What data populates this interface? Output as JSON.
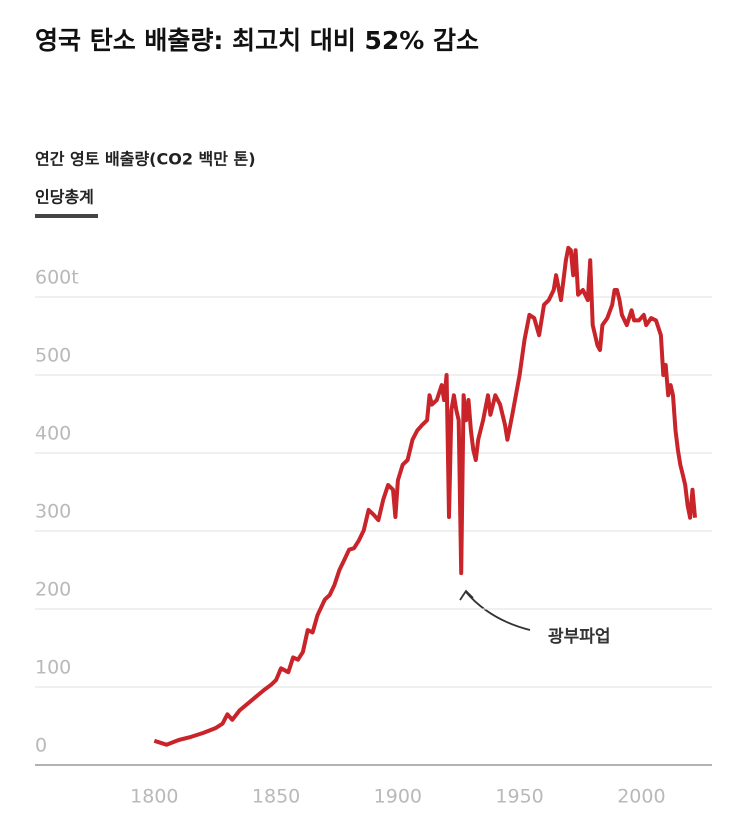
{
  "chart_data": {
    "type": "line",
    "title": "영국 탄소 배출량: 최고치 대비 52% 감소",
    "ylabel": "연간 영토 배출량(CO2 백만 톤)",
    "tab": "인당총계",
    "annotations": [
      {
        "text": "광부파업"
      }
    ],
    "x": [
      1800,
      1805,
      1810,
      1815,
      1820,
      1825,
      1828,
      1830,
      1832,
      1835,
      1840,
      1845,
      1848,
      1850,
      1852,
      1855,
      1857,
      1859,
      1861,
      1863,
      1865,
      1867,
      1870,
      1872,
      1874,
      1876,
      1878,
      1880,
      1882,
      1884,
      1886,
      1888,
      1890,
      1892,
      1894,
      1896,
      1898,
      1899,
      1900,
      1902,
      1904,
      1906,
      1908,
      1910,
      1912,
      1913,
      1914,
      1916,
      1918,
      1919,
      1920,
      1921,
      1922,
      1923,
      1924,
      1925,
      1926,
      1927,
      1928,
      1929,
      1930,
      1931,
      1932,
      1933,
      1935,
      1937,
      1938,
      1940,
      1942,
      1944,
      1945,
      1947,
      1950,
      1952,
      1954,
      1956,
      1958,
      1960,
      1962,
      1964,
      1965,
      1967,
      1969,
      1970,
      1971,
      1972,
      1973,
      1974,
      1976,
      1978,
      1979,
      1980,
      1982,
      1983,
      1984,
      1986,
      1988,
      1989,
      1990,
      1991,
      1992,
      1994,
      1996,
      1997,
      1999,
      2001,
      2002,
      2004,
      2006,
      2008,
      2009,
      2010,
      2011,
      2012,
      2013,
      2014,
      2015,
      2016,
      2017,
      2018,
      2019,
      2020,
      2021,
      2022
    ],
    "series": [
      {
        "name": "CO2",
        "color": "#c8242a",
        "values": [
          31,
          26,
          32,
          36,
          41,
          47,
          53,
          65,
          58,
          70,
          83,
          96,
          103,
          109,
          124,
          119,
          138,
          135,
          145,
          173,
          170,
          192,
          212,
          218,
          231,
          250,
          263,
          276,
          278,
          288,
          301,
          327,
          321,
          314,
          340,
          359,
          353,
          318,
          365,
          385,
          391,
          417,
          429,
          436,
          442,
          474,
          462,
          468,
          487,
          468,
          500,
          318,
          455,
          474,
          455,
          442,
          246,
          474,
          442,
          468,
          429,
          404,
          391,
          417,
          442,
          474,
          449,
          474,
          462,
          436,
          417,
          449,
          500,
          545,
          577,
          573,
          551,
          590,
          596,
          609,
          628,
          596,
          647,
          663,
          660,
          628,
          660,
          603,
          609,
          596,
          647,
          564,
          538,
          532,
          564,
          573,
          590,
          609,
          609,
          596,
          577,
          564,
          583,
          570,
          570,
          577,
          564,
          573,
          570,
          551,
          500,
          513,
          474,
          487,
          474,
          429,
          404,
          385,
          372,
          359,
          333,
          317,
          353,
          317
        ]
      }
    ],
    "xlim": [
      1751,
      2029
    ],
    "ylim": [
      0,
      680
    ],
    "xticks": [
      1800,
      1850,
      1900,
      1950,
      2000
    ],
    "yticks": [
      0,
      100,
      200,
      300,
      400,
      500,
      {
        "value": 600,
        "label": "600t"
      }
    ],
    "grid": true
  }
}
